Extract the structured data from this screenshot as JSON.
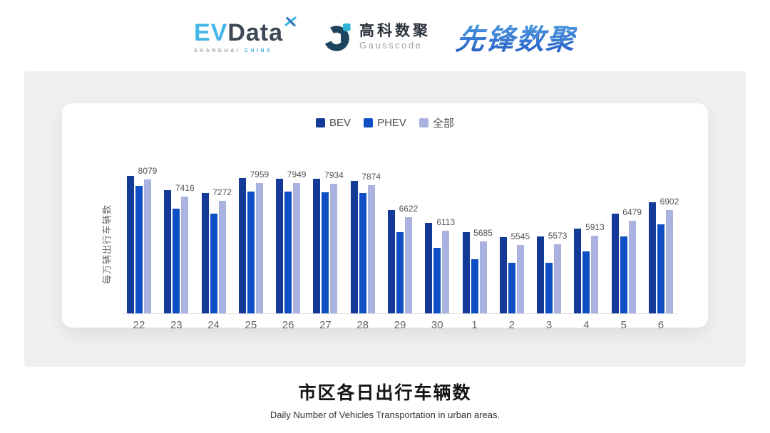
{
  "header": {
    "evdata": {
      "ev": "EV",
      "data": "Data",
      "sub_left": "SHANGHAI",
      "sub_right": "CHINA"
    },
    "gausscode": {
      "cn": "高科数聚",
      "en": "Gausscode"
    },
    "xianfeng": {
      "text": "先锋数聚"
    }
  },
  "brand_colors": {
    "evdata_cyan": "#45b5e8",
    "evdata_dark": "#3d4756",
    "gausscode_navy": "#1e455f",
    "gausscode_cyan": "#2ab5d8",
    "xianfeng_top": "#55a7e6",
    "xianfeng_bottom": "#2a63c8"
  },
  "chart_data": {
    "type": "bar",
    "title": "市区各日出行车辆数",
    "subtitle": "Daily Number of Vehicles Transportation in urban areas.",
    "ylabel": "每万辆出行车辆数",
    "xlabel": "",
    "legend_position": "top",
    "grid": false,
    "ylim": [
      2900,
      8700
    ],
    "categories": [
      "22",
      "23",
      "24",
      "25",
      "26",
      "27",
      "28",
      "29",
      "30",
      "1",
      "2",
      "3",
      "4",
      "5",
      "6"
    ],
    "series": [
      {
        "key": "bev",
        "name": "BEV",
        "color": "#123a96",
        "estimated": true,
        "values": [
          8240,
          7680,
          7560,
          8150,
          8130,
          8110,
          8040,
          6900,
          6410,
          6040,
          5860,
          5890,
          6190,
          6770,
          7200
        ]
      },
      {
        "key": "phev",
        "name": "PHEV",
        "color": "#0f4fc5",
        "estimated": true,
        "values": [
          7830,
          6950,
          6760,
          7630,
          7610,
          7600,
          7560,
          6040,
          5450,
          4990,
          4870,
          4850,
          5300,
          5880,
          6340
        ]
      },
      {
        "key": "all",
        "name": "全部",
        "color": "#aab3e0",
        "labeled": true,
        "values": [
          8079,
          7416,
          7272,
          7959,
          7949,
          7934,
          7874,
          6622,
          6113,
          5685,
          5545,
          5573,
          5913,
          6479,
          6902
        ]
      }
    ],
    "data_labels": [
      8079,
      7416,
      7272,
      7959,
      7949,
      7934,
      7874,
      6622,
      6113,
      5685,
      5545,
      5573,
      5913,
      6479,
      6902
    ]
  }
}
